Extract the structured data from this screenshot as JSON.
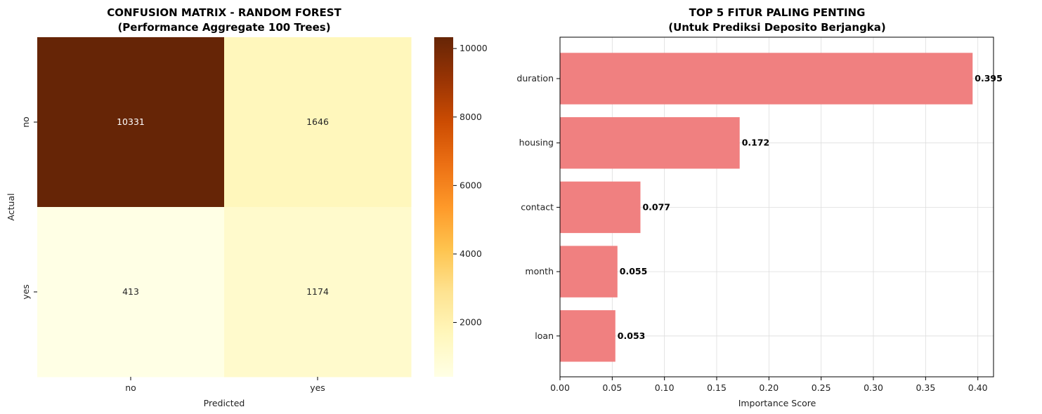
{
  "chart_data": [
    {
      "type": "heatmap",
      "title": "CONFUSION MATRIX - RANDOM FOREST",
      "subtitle": "(Performance Aggregate 100 Trees)",
      "xlabel": "Predicted",
      "ylabel": "Actual",
      "x_categories": [
        "no",
        "yes"
      ],
      "y_categories": [
        "no",
        "yes"
      ],
      "values": [
        [
          10331,
          1646
        ],
        [
          413,
          1174
        ]
      ],
      "value_labels": [
        [
          "10331",
          "1646"
        ],
        [
          "413",
          "1174"
        ]
      ],
      "colormap": "YlOrBr",
      "value_range": [
        413,
        10331
      ],
      "colorbar_ticks": [
        2000,
        4000,
        6000,
        8000,
        10000
      ],
      "colorbar_tick_labels": [
        "2000",
        "4000",
        "6000",
        "8000",
        "10000"
      ]
    },
    {
      "type": "bar",
      "orientation": "horizontal",
      "title": "TOP 5 FITUR PALING PENTING",
      "subtitle": "(Untuk Prediksi Deposito Berjangka)",
      "xlabel": "Importance Score",
      "ylabel": "",
      "categories": [
        "duration",
        "housing",
        "contact",
        "month",
        "loan"
      ],
      "values": [
        0.395,
        0.172,
        0.077,
        0.055,
        0.053
      ],
      "value_labels": [
        "0.395",
        "0.172",
        "0.077",
        "0.055",
        "0.053"
      ],
      "xlim": [
        0,
        0.415
      ],
      "x_ticks": [
        0,
        0.05,
        0.1,
        0.15,
        0.2,
        0.25,
        0.3,
        0.35,
        0.4
      ],
      "x_tick_labels": [
        "0.00",
        "0.05",
        "0.10",
        "0.15",
        "0.20",
        "0.25",
        "0.30",
        "0.35",
        "0.40"
      ],
      "bar_color": "#f08080",
      "grid": true
    }
  ]
}
